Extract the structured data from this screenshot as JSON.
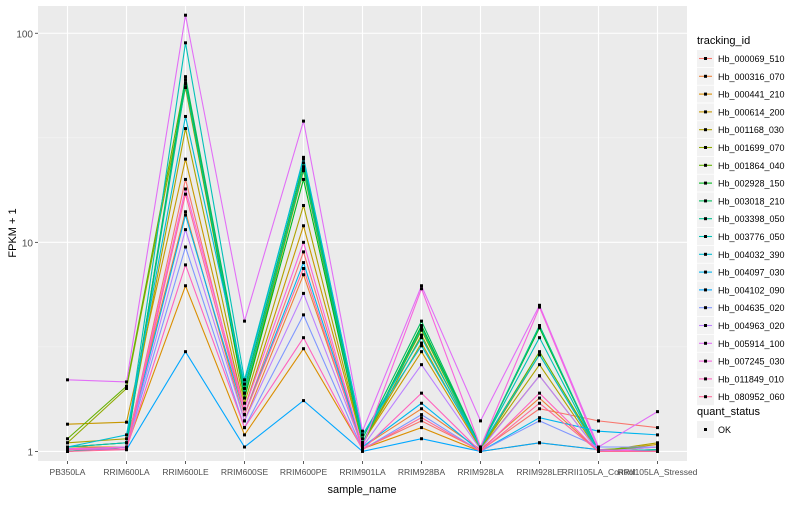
{
  "chart_data": {
    "type": "line",
    "y_scale": "log10",
    "xlabel": "sample_name",
    "ylabel": "FPKM + 1",
    "ylim": [
      0.9,
      135
    ],
    "y_ticks": [
      {
        "value": 1,
        "label": "1"
      },
      {
        "value": 10,
        "label": "10"
      },
      {
        "value": 100,
        "label": "100"
      }
    ],
    "categories": [
      "PB350LA",
      "RRIM600LA",
      "RRIM600LE",
      "RRIM600SE",
      "RRIM600PE",
      "RRIM901LA",
      "RRIM928BA",
      "RRIM928LA",
      "RRIM928LE",
      "RRII105LA_Control",
      "RRII105LA_Stressed"
    ],
    "legend": {
      "title": "tracking_id",
      "position": "right"
    },
    "legend2": {
      "title": "quant_status",
      "items": [
        {
          "label": "OK"
        }
      ]
    },
    "series": [
      {
        "name": "Hb_000069_510",
        "color": "#F8766D",
        "values": [
          1.0,
          1.05,
          20.0,
          1.5,
          9.0,
          1.03,
          1.4,
          1.01,
          1.6,
          1.4,
          1.3
        ]
      },
      {
        "name": "Hb_000316_070",
        "color": "#EC8239",
        "values": [
          1.05,
          1.1,
          14.0,
          1.4,
          7.0,
          1.05,
          1.6,
          1.02,
          1.8,
          1.0,
          1.02
        ]
      },
      {
        "name": "Hb_000441_210",
        "color": "#DB8E00",
        "values": [
          1.05,
          1.05,
          6.2,
          1.2,
          3.1,
          1.03,
          1.3,
          1.0,
          1.1,
          1.02,
          1.0
        ]
      },
      {
        "name": "Hb_000614_200",
        "color": "#C79800",
        "values": [
          1.35,
          1.38,
          25.0,
          1.6,
          12.0,
          1.1,
          3.0,
          1.03,
          2.3,
          1.0,
          1.08
        ]
      },
      {
        "name": "Hb_001168_030",
        "color": "#AEA200",
        "values": [
          1.1,
          1.15,
          35.0,
          1.7,
          15.0,
          1.1,
          3.3,
          1.03,
          2.6,
          1.0,
          1.1
        ]
      },
      {
        "name": "Hb_001699_070",
        "color": "#8FAA00",
        "values": [
          1.1,
          2.0,
          55.0,
          1.8,
          22.0,
          1.08,
          3.6,
          1.02,
          2.9,
          1.0,
          1.05
        ]
      },
      {
        "name": "Hb_001864_040",
        "color": "#64B200",
        "values": [
          1.15,
          2.05,
          60.0,
          1.9,
          23.0,
          1.1,
          3.8,
          1.04,
          3.0,
          1.02,
          1.05
        ]
      },
      {
        "name": "Hb_002928_150",
        "color": "#00B81B",
        "values": [
          1.05,
          1.1,
          58.0,
          1.8,
          20.0,
          1.1,
          4.0,
          1.05,
          3.9,
          1.0,
          1.02
        ]
      },
      {
        "name": "Hb_003018_210",
        "color": "#00BD5C",
        "values": [
          1.0,
          1.05,
          62.0,
          2.0,
          24.0,
          1.15,
          4.2,
          1.05,
          4.0,
          1.0,
          1.0
        ]
      },
      {
        "name": "Hb_003398_050",
        "color": "#00C08E",
        "values": [
          1.0,
          1.05,
          57.0,
          1.9,
          22.5,
          1.1,
          3.9,
          1.04,
          4.0,
          1.0,
          1.0
        ]
      },
      {
        "name": "Hb_003776_050",
        "color": "#00C1B7",
        "values": [
          1.05,
          1.1,
          90.0,
          2.2,
          25.0,
          1.2,
          3.5,
          1.05,
          3.5,
          1.0,
          1.02
        ]
      },
      {
        "name": "Hb_004032_390",
        "color": "#00BDD4",
        "values": [
          1.05,
          1.2,
          40.0,
          2.1,
          25.5,
          1.2,
          3.2,
          1.05,
          2.9,
          1.0,
          1.0
        ]
      },
      {
        "name": "Hb_004097_030",
        "color": "#00B5EE",
        "values": [
          1.03,
          1.05,
          13.5,
          1.5,
          8.0,
          1.05,
          1.7,
          1.0,
          1.45,
          1.25,
          1.2
        ]
      },
      {
        "name": "Hb_004102_090",
        "color": "#00A7FF",
        "values": [
          1.02,
          1.02,
          3.0,
          1.05,
          1.75,
          1.0,
          1.15,
          1.0,
          1.1,
          1.02,
          1.0
        ]
      },
      {
        "name": "Hb_004635_020",
        "color": "#7F96FF",
        "values": [
          1.02,
          1.05,
          9.5,
          1.3,
          4.5,
          1.02,
          1.5,
          1.0,
          1.4,
          1.05,
          1.05
        ]
      },
      {
        "name": "Hb_004963_020",
        "color": "#BC81FF",
        "values": [
          1.02,
          1.05,
          11.5,
          1.4,
          5.7,
          1.05,
          2.6,
          1.02,
          2.3,
          1.0,
          1.05
        ]
      },
      {
        "name": "Hb_005914_100",
        "color": "#E26EF7",
        "values": [
          2.2,
          2.15,
          122.0,
          4.2,
          38.0,
          1.25,
          6.2,
          1.4,
          5.0,
          1.05,
          1.55
        ]
      },
      {
        "name": "Hb_007245_030",
        "color": "#F863DF",
        "values": [
          1.03,
          1.05,
          18.0,
          1.6,
          10.0,
          1.05,
          6.0,
          1.05,
          4.9,
          1.02,
          1.0
        ]
      },
      {
        "name": "Hb_011849_010",
        "color": "#FF62BF",
        "values": [
          1.02,
          1.03,
          7.8,
          1.3,
          3.5,
          1.02,
          1.9,
          1.0,
          1.9,
          1.0,
          1.0
        ]
      },
      {
        "name": "Hb_080952_060",
        "color": "#FF6A98",
        "values": [
          1.0,
          1.02,
          17.0,
          1.5,
          7.5,
          1.02,
          1.45,
          1.0,
          1.7,
          1.0,
          1.0
        ]
      }
    ]
  }
}
